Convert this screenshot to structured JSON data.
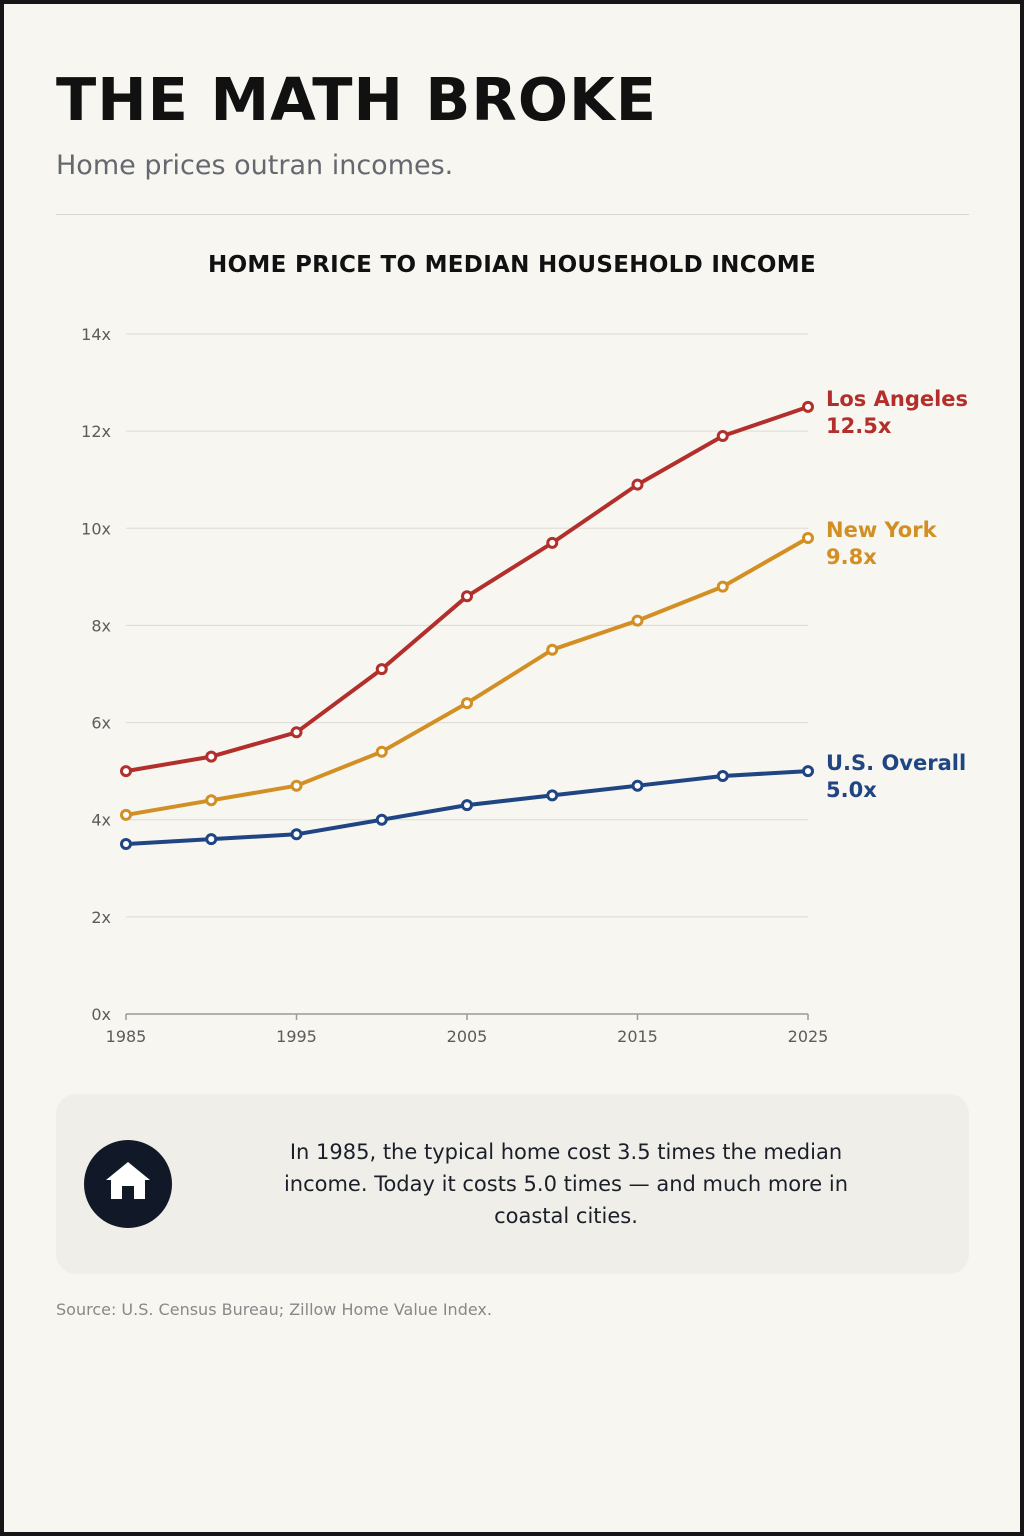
{
  "header": {
    "title": "THE MATH BROKE",
    "subtitle": "Home prices outran incomes."
  },
  "chart_data": {
    "type": "line",
    "title": "HOME PRICE TO MEDIAN HOUSEHOLD INCOME",
    "x": [
      1985,
      1990,
      1995,
      2000,
      2005,
      2010,
      2015,
      2020,
      2025
    ],
    "x_ticks": [
      "1985",
      "1995",
      "2005",
      "2015",
      "2025"
    ],
    "y_ticks": [
      "0x",
      "2x",
      "4x",
      "6x",
      "8x",
      "10x",
      "12x",
      "14x"
    ],
    "ylim": [
      0,
      14
    ],
    "grid": true,
    "xlabel": "",
    "ylabel": "",
    "series": [
      {
        "name": "Los Angeles",
        "end_label": "12.5x",
        "color": "#b22f2b",
        "values": [
          5.0,
          5.3,
          5.8,
          7.1,
          8.6,
          9.7,
          10.9,
          11.9,
          12.5
        ]
      },
      {
        "name": "New York",
        "end_label": "9.8x",
        "color": "#d28f24",
        "values": [
          4.1,
          4.4,
          4.7,
          5.4,
          6.4,
          7.5,
          8.1,
          8.8,
          9.8
        ]
      },
      {
        "name": "U.S. Overall",
        "end_label": "5.0x",
        "color": "#1f4583",
        "values": [
          3.5,
          3.6,
          3.7,
          4.0,
          4.3,
          4.5,
          4.7,
          4.9,
          5.0
        ]
      }
    ]
  },
  "callout": {
    "icon": "house-icon",
    "text": "In 1985, the typical home cost 3.5 times the median income. Today it costs 5.0 times — and much more in coastal cities."
  },
  "footer": {
    "source": "Source: U.S. Census Bureau; Zillow Home Value Index."
  }
}
